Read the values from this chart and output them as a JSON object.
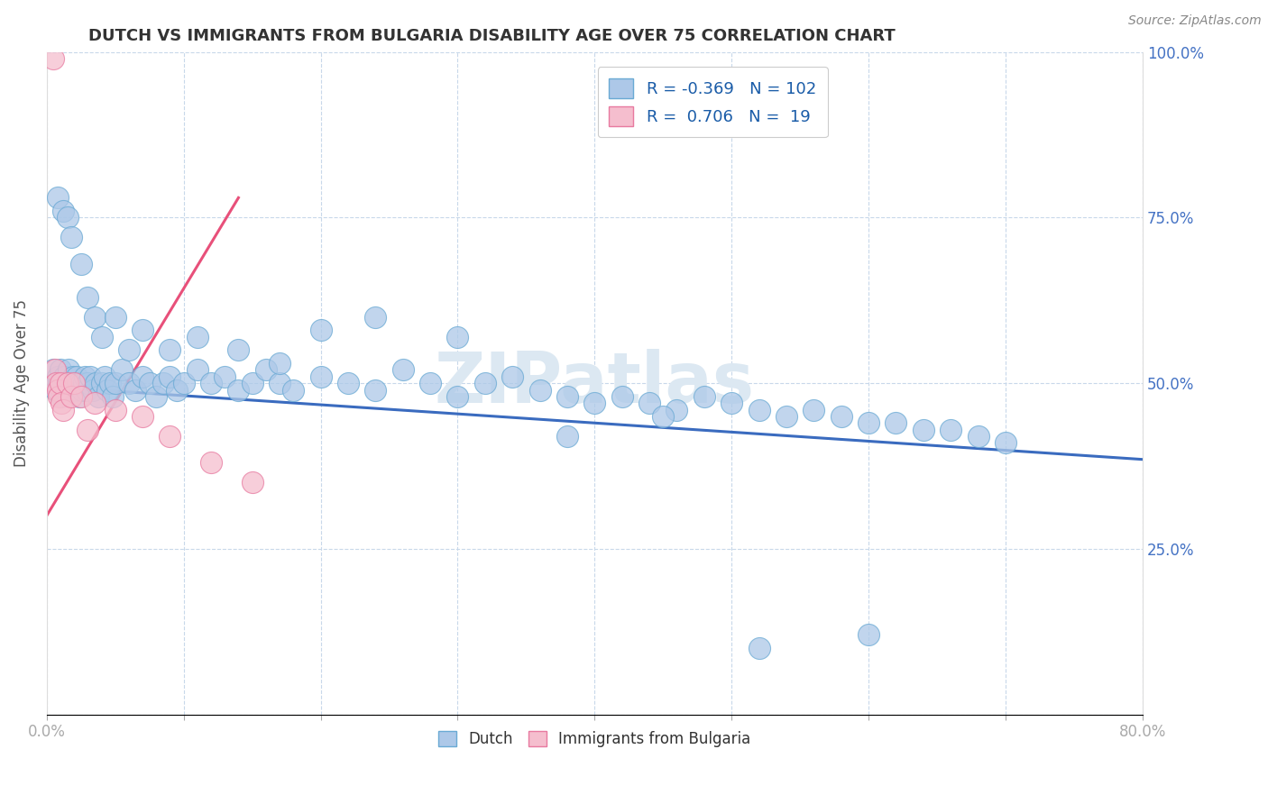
{
  "title": "DUTCH VS IMMIGRANTS FROM BULGARIA DISABILITY AGE OVER 75 CORRELATION CHART",
  "source": "Source: ZipAtlas.com",
  "ylabel": "Disability Age Over 75",
  "x_min": 0.0,
  "x_max": 0.8,
  "y_min": 0.0,
  "y_max": 1.0,
  "x_ticks": [
    0.0,
    0.1,
    0.2,
    0.3,
    0.4,
    0.5,
    0.6,
    0.7,
    0.8
  ],
  "x_tick_labels_shown": {
    "0.0": "0.0%",
    "0.8": "80.0%"
  },
  "y_ticks": [
    0.0,
    0.25,
    0.5,
    0.75,
    1.0
  ],
  "y_tick_labels": [
    "",
    "25.0%",
    "50.0%",
    "75.0%",
    "100.0%"
  ],
  "dutch_color": "#adc8e8",
  "dutch_edge_color": "#6aaad4",
  "bulgaria_color": "#f5bece",
  "bulgaria_edge_color": "#e87aa0",
  "trend_dutch_color": "#3a6bbf",
  "trend_bulgaria_color": "#e8507a",
  "dutch_R": -0.369,
  "dutch_N": 102,
  "bulgaria_R": 0.706,
  "bulgaria_N": 19,
  "watermark": "ZIPatlas",
  "legend_label_dutch": "Dutch",
  "legend_label_bulgaria": "Immigrants from Bulgaria",
  "dutch_trend_x0": 0.0,
  "dutch_trend_y0": 0.495,
  "dutch_trend_x1": 0.8,
  "dutch_trend_y1": 0.385,
  "bulgaria_trend_x0": 0.0,
  "bulgaria_trend_y0": 0.3,
  "bulgaria_trend_x1": 0.14,
  "bulgaria_trend_y1": 0.78,
  "dutch_x": [
    0.005,
    0.006,
    0.007,
    0.008,
    0.009,
    0.01,
    0.011,
    0.012,
    0.013,
    0.014,
    0.015,
    0.016,
    0.017,
    0.018,
    0.019,
    0.02,
    0.021,
    0.022,
    0.023,
    0.024,
    0.025,
    0.026,
    0.027,
    0.028,
    0.029,
    0.03,
    0.032,
    0.034,
    0.036,
    0.038,
    0.04,
    0.042,
    0.044,
    0.046,
    0.048,
    0.05,
    0.055,
    0.06,
    0.065,
    0.07,
    0.075,
    0.08,
    0.085,
    0.09,
    0.095,
    0.1,
    0.11,
    0.12,
    0.13,
    0.14,
    0.15,
    0.16,
    0.17,
    0.18,
    0.2,
    0.22,
    0.24,
    0.26,
    0.28,
    0.3,
    0.32,
    0.34,
    0.36,
    0.38,
    0.4,
    0.42,
    0.44,
    0.46,
    0.48,
    0.5,
    0.52,
    0.54,
    0.56,
    0.58,
    0.6,
    0.62,
    0.64,
    0.66,
    0.68,
    0.7,
    0.008,
    0.012,
    0.015,
    0.018,
    0.025,
    0.03,
    0.035,
    0.04,
    0.05,
    0.06,
    0.07,
    0.09,
    0.11,
    0.14,
    0.17,
    0.2,
    0.24,
    0.3,
    0.38,
    0.45,
    0.52,
    0.6
  ],
  "dutch_y": [
    0.52,
    0.5,
    0.49,
    0.51,
    0.5,
    0.52,
    0.48,
    0.5,
    0.51,
    0.49,
    0.5,
    0.52,
    0.49,
    0.5,
    0.51,
    0.5,
    0.49,
    0.51,
    0.5,
    0.48,
    0.5,
    0.49,
    0.5,
    0.51,
    0.49,
    0.5,
    0.51,
    0.49,
    0.5,
    0.48,
    0.5,
    0.51,
    0.49,
    0.5,
    0.48,
    0.5,
    0.52,
    0.5,
    0.49,
    0.51,
    0.5,
    0.48,
    0.5,
    0.51,
    0.49,
    0.5,
    0.52,
    0.5,
    0.51,
    0.49,
    0.5,
    0.52,
    0.5,
    0.49,
    0.51,
    0.5,
    0.49,
    0.52,
    0.5,
    0.48,
    0.5,
    0.51,
    0.49,
    0.48,
    0.47,
    0.48,
    0.47,
    0.46,
    0.48,
    0.47,
    0.46,
    0.45,
    0.46,
    0.45,
    0.44,
    0.44,
    0.43,
    0.43,
    0.42,
    0.41,
    0.78,
    0.76,
    0.75,
    0.72,
    0.68,
    0.63,
    0.6,
    0.57,
    0.6,
    0.55,
    0.58,
    0.55,
    0.57,
    0.55,
    0.53,
    0.58,
    0.6,
    0.57,
    0.42,
    0.45,
    0.1,
    0.12
  ],
  "bulgaria_x": [
    0.005,
    0.006,
    0.007,
    0.008,
    0.009,
    0.01,
    0.011,
    0.012,
    0.015,
    0.018,
    0.02,
    0.025,
    0.03,
    0.035,
    0.05,
    0.07,
    0.09,
    0.12,
    0.15
  ],
  "bulgaria_y": [
    0.99,
    0.52,
    0.5,
    0.49,
    0.48,
    0.5,
    0.47,
    0.46,
    0.5,
    0.48,
    0.5,
    0.48,
    0.43,
    0.47,
    0.46,
    0.45,
    0.42,
    0.38,
    0.35
  ],
  "background_color": "#ffffff",
  "grid_color": "#c8d8ea",
  "fig_width": 14.06,
  "fig_height": 8.92
}
